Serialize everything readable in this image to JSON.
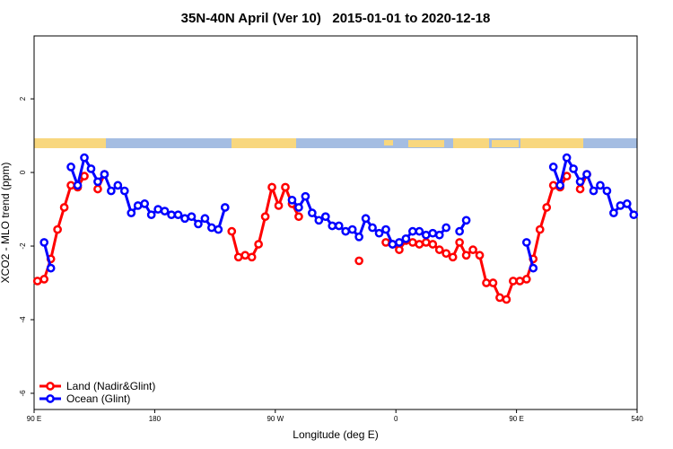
{
  "chart_data": {
    "type": "line",
    "title": "35N-40N April (Ver 10)   2015-01-01 to 2020-12-18",
    "xlabel": "Longitude (deg E)",
    "ylabel": "XCO2 - MLO trend (ppm)",
    "x": [
      92.5,
      97.5,
      102.5,
      107.5,
      112.5,
      117.5,
      122.5,
      127.5,
      132.5,
      137.5,
      142.5,
      147.5,
      152.5,
      157.5,
      162.5,
      167.5,
      172.5,
      177.5,
      182.5,
      187.5,
      192.5,
      197.5,
      202.5,
      207.5,
      212.5,
      217.5,
      222.5,
      227.5,
      232.5,
      237.5,
      242.5,
      247.5,
      252.5,
      257.5,
      262.5,
      267.5,
      272.5,
      277.5,
      282.5,
      287.5,
      292.5,
      297.5,
      302.5,
      307.5,
      312.5,
      317.5,
      322.5,
      327.5,
      332.5,
      337.5,
      342.5,
      347.5,
      352.5,
      357.5,
      362.5,
      367.5,
      372.5,
      377.5,
      382.5,
      387.5,
      392.5,
      397.5,
      402.5,
      407.5,
      412.5,
      417.5,
      422.5,
      427.5,
      432.5,
      437.5,
      442.5,
      447.5,
      452.5,
      457.5,
      462.5,
      467.5,
      472.5,
      477.5,
      482.5,
      487.5,
      492.5,
      497.5,
      502.5,
      507.5,
      512.5,
      517.5,
      522.5,
      527.5,
      532.5,
      537.5
    ],
    "series": [
      {
        "name": "Land (Nadir&Glint)",
        "color": "#ff0000",
        "values": [
          -2.95,
          -2.9,
          -2.35,
          -1.55,
          -0.95,
          -0.35,
          -0.4,
          -0.1,
          null,
          -0.45,
          -0.05,
          null,
          null,
          null,
          null,
          null,
          null,
          null,
          null,
          null,
          null,
          null,
          null,
          null,
          null,
          null,
          null,
          null,
          null,
          -1.6,
          -2.3,
          -2.25,
          -2.3,
          -1.95,
          -1.2,
          -0.4,
          -0.9,
          -0.4,
          -0.85,
          -1.2,
          null,
          null,
          null,
          null,
          null,
          null,
          null,
          null,
          -2.4,
          null,
          null,
          null,
          -1.9,
          -1.95,
          -2.1,
          -1.85,
          -1.9,
          -1.95,
          -1.9,
          -1.95,
          -2.1,
          -2.2,
          -2.3,
          -1.9,
          -2.25,
          -2.1,
          -2.25,
          -3.0,
          -3.0,
          -3.4,
          -3.45,
          -2.95,
          -2.95,
          -2.9,
          -2.35,
          -1.55,
          -0.95,
          -0.35,
          -0.4,
          -0.1,
          null,
          -0.45,
          -0.05,
          null,
          null,
          null,
          null,
          null,
          null,
          null
        ]
      },
      {
        "name": "Ocean (Glint)",
        "color": "#0000ff",
        "values": [
          null,
          -1.9,
          -2.6,
          null,
          null,
          0.15,
          -0.35,
          0.4,
          0.1,
          -0.25,
          -0.05,
          -0.5,
          -0.35,
          -0.5,
          -1.1,
          -0.9,
          -0.85,
          -1.15,
          -1.0,
          -1.05,
          -1.15,
          -1.15,
          -1.25,
          -1.2,
          -1.4,
          -1.25,
          -1.5,
          -1.55,
          -0.95,
          null,
          null,
          null,
          null,
          null,
          null,
          null,
          null,
          null,
          -0.75,
          -0.95,
          -0.65,
          -1.1,
          -1.3,
          -1.2,
          -1.45,
          -1.45,
          -1.6,
          -1.55,
          -1.75,
          -1.25,
          -1.5,
          -1.65,
          -1.55,
          -1.95,
          -1.9,
          -1.8,
          -1.6,
          -1.6,
          -1.7,
          -1.65,
          -1.7,
          -1.5,
          null,
          -1.6,
          -1.3,
          null,
          null,
          null,
          null,
          null,
          null,
          null,
          null,
          -1.9,
          -2.6,
          null,
          null,
          0.15,
          -0.35,
          0.4,
          0.1,
          -0.25,
          -0.05,
          -0.5,
          -0.35,
          -0.5,
          -1.1,
          -0.9,
          -0.85,
          -1.15
        ]
      }
    ],
    "xlim": [
      90,
      540
    ],
    "xticks": [
      {
        "value": 90,
        "label": "90 E"
      },
      180,
      {
        "value": 270,
        "label": "90 W"
      },
      {
        "value": 360,
        "label": "0"
      },
      {
        "value": 450,
        "label": "90 E"
      },
      540
    ],
    "ylim": [
      -6.44,
      3.71
    ],
    "yticks": [
      -6,
      -4,
      -2,
      0,
      2
    ],
    "legend": "bottom-left"
  }
}
